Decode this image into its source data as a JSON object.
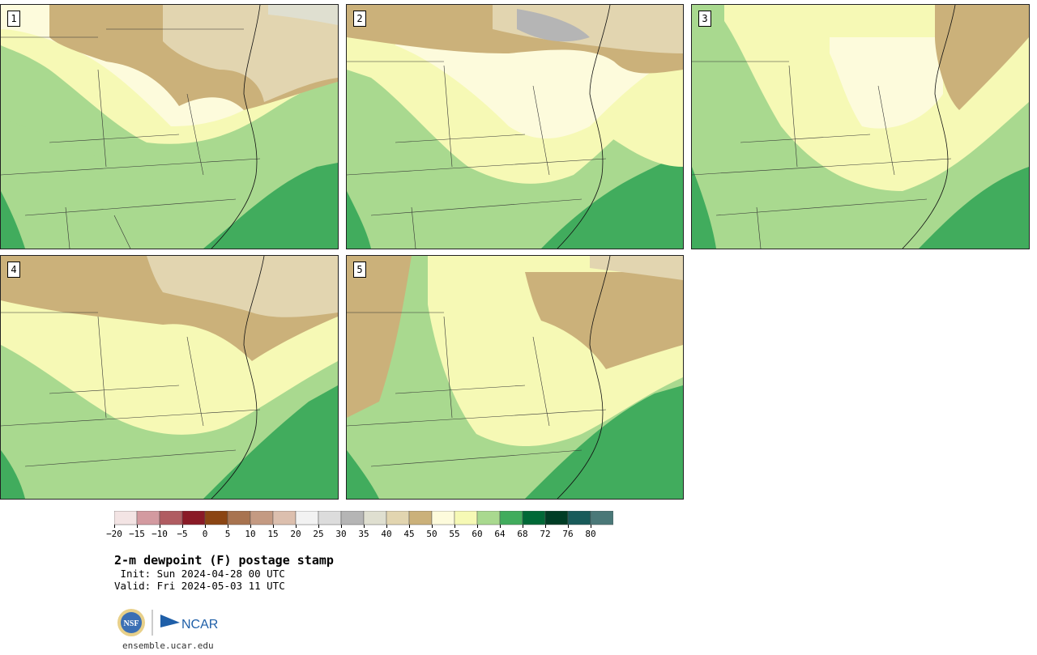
{
  "panels": [
    {
      "id": "1",
      "label": "1"
    },
    {
      "id": "2",
      "label": "2"
    },
    {
      "id": "3",
      "label": "3"
    },
    {
      "id": "4",
      "label": "4"
    },
    {
      "id": "5",
      "label": "5"
    }
  ],
  "colorbar": {
    "labels": [
      "−20",
      "−15",
      "−10",
      "−5",
      "0",
      "5",
      "10",
      "15",
      "20",
      "25",
      "30",
      "35",
      "40",
      "45",
      "50",
      "55",
      "60",
      "64",
      "68",
      "72",
      "76",
      "80"
    ],
    "colors": [
      "#f3e4e4",
      "#d39aa0",
      "#b05c61",
      "#8a1a26",
      "#8b4513",
      "#a8734f",
      "#c49a82",
      "#dcbfae",
      "#f2f2f2",
      "#dcdcdc",
      "#b5b5b5",
      "#dfdfd0",
      "#e2d5b0",
      "#cbb17a",
      "#fdfbdc",
      "#f6f9b5",
      "#a9d98f",
      "#41ac5d",
      "#006937",
      "#003d25",
      "#185b5a",
      "#4a7878"
    ]
  },
  "title": "2-m dewpoint (F) postage stamp",
  "init": " Init: Sun 2024-04-28 00 UTC",
  "valid": "Valid: Fri 2024-05-03 11 UTC",
  "logos": {
    "left": "NSF",
    "right": "NCAR"
  },
  "site": "ensemble.ucar.edu"
}
